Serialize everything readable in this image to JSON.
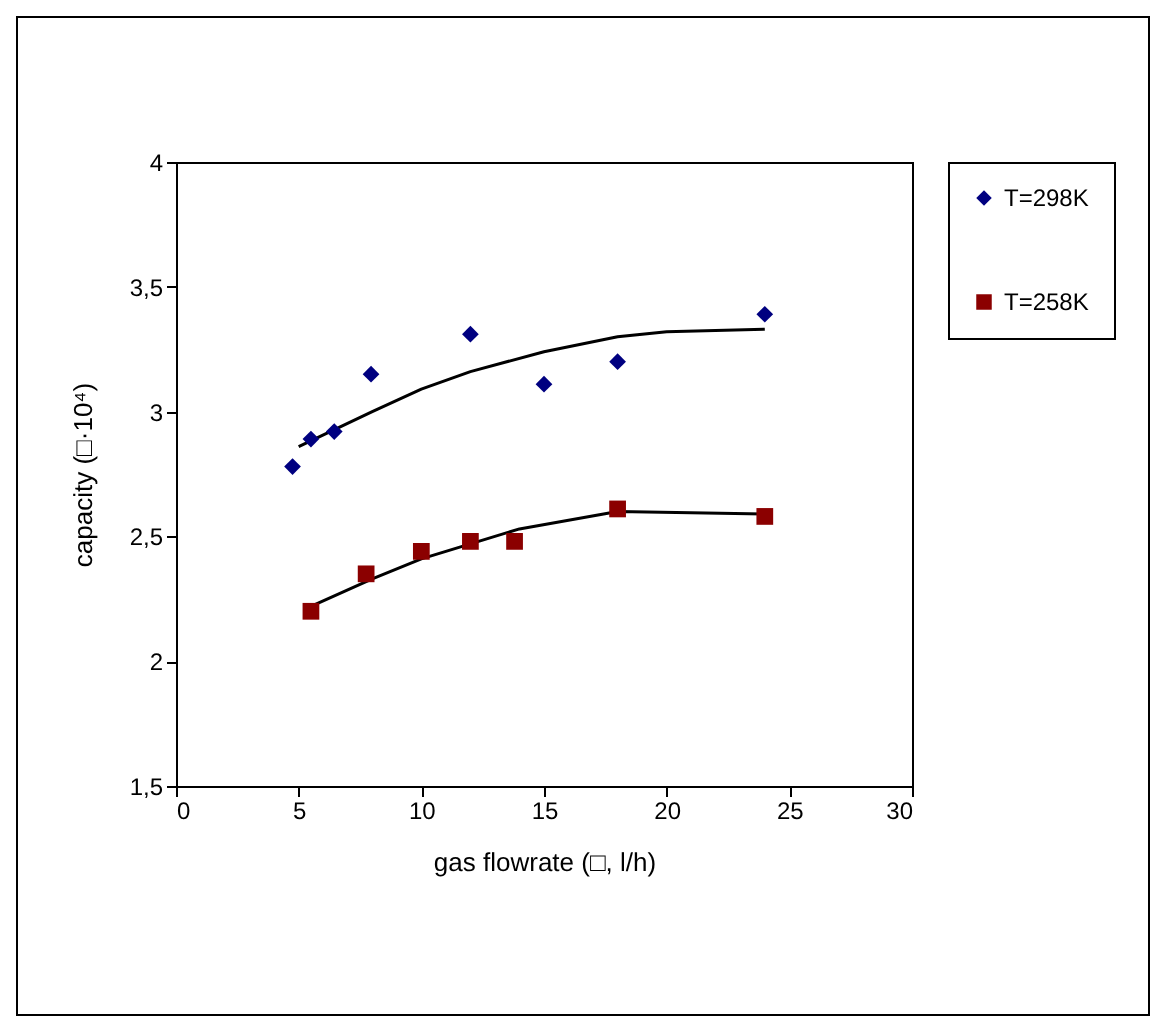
{
  "chart_data": {
    "type": "scatter",
    "xlabel": "gas flowrate (□, l/h)",
    "ylabel": "capacity (□·10⁴)",
    "xlim": [
      0,
      30
    ],
    "xticks": [
      0,
      5,
      10,
      15,
      20,
      25,
      30
    ],
    "ylim": [
      1.5,
      4
    ],
    "yticks": [
      {
        "value": 1.5,
        "label": "1,5"
      },
      2,
      {
        "value": 2.5,
        "label": "2,5"
      },
      3,
      {
        "value": 3.5,
        "label": "3,5"
      },
      4
    ],
    "grid": false,
    "legend": "right",
    "series": [
      {
        "name": "T=298K",
        "color": "#000080",
        "marker": "diamond",
        "x": [
          4.75,
          5.5,
          6.45,
          7.95,
          12,
          15,
          18,
          24
        ],
        "values": [
          2.78,
          2.89,
          2.92,
          3.15,
          3.31,
          3.11,
          3.2,
          3.39
        ]
      },
      {
        "name": "T=258K",
        "color": "#8b0000",
        "marker": "square",
        "x": [
          5.5,
          7.75,
          10,
          12,
          13.8,
          18,
          24
        ],
        "values": [
          2.2,
          2.35,
          2.44,
          2.48,
          2.48,
          2.61,
          2.58
        ]
      },
      {
        "type": "line",
        "color": "#000000",
        "marker": "none",
        "x": [
          5,
          8,
          10,
          12,
          15,
          18,
          20,
          24
        ],
        "values": [
          2.86,
          3.0,
          3.09,
          3.16,
          3.24,
          3.3,
          3.32,
          3.33
        ]
      },
      {
        "type": "line",
        "color": "#000000",
        "marker": "none",
        "x": [
          5.5,
          8,
          10,
          12,
          14,
          18,
          24
        ],
        "values": [
          2.22,
          2.33,
          2.41,
          2.47,
          2.53,
          2.6,
          2.59
        ]
      }
    ]
  }
}
